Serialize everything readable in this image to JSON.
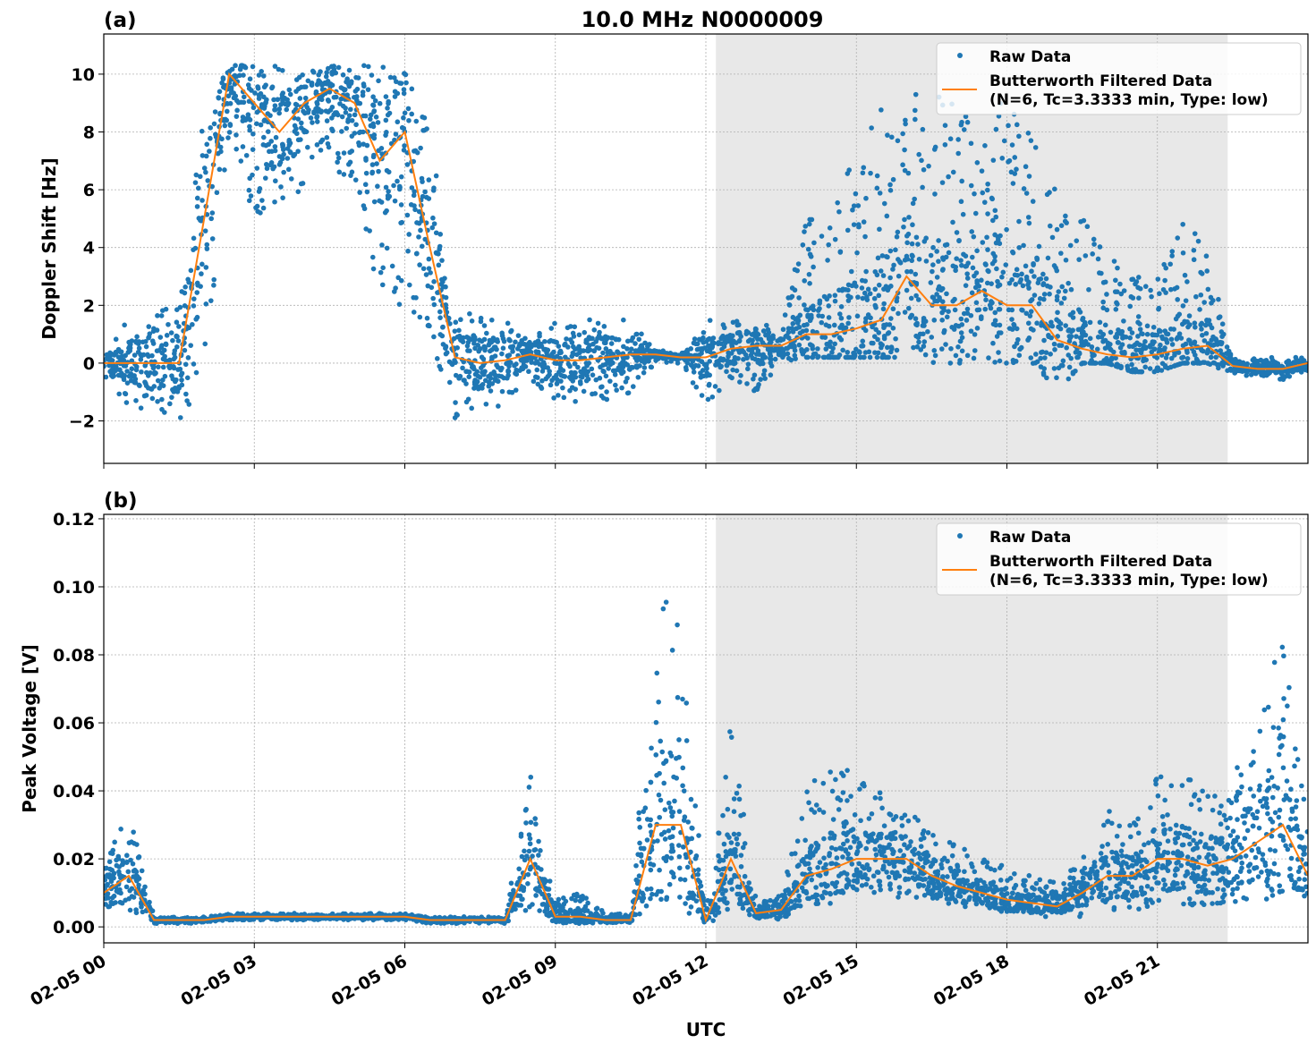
{
  "figure_title": "10.0 MHz N0000009",
  "colors": {
    "raw": "#1f77b4",
    "filtered": "#ff7f0e",
    "shade": "#e8e8e8",
    "grid": "#b0b0b0"
  },
  "legend": {
    "raw": "Raw Data",
    "filtered_line1": "Butterworth Filtered Data",
    "filtered_line2": "(N=6, Tc=3.3333 min, Type: low)",
    "placement": "upper-right"
  },
  "xlabel": "UTC",
  "x_ticks": [
    "02-05 00",
    "02-05 03",
    "02-05 06",
    "02-05 09",
    "02-05 12",
    "02-05 15",
    "02-05 18",
    "02-05 21"
  ],
  "chart_data": [
    {
      "type": "scatter",
      "panel_label": "(a)",
      "ylabel": "Doppler Shift [Hz]",
      "xlim": [
        "02-05 00:00",
        "02-06 00:00"
      ],
      "ylim": [
        -3.47,
        11.39
      ],
      "y_ticks": [
        -2,
        0,
        2,
        4,
        6,
        8,
        10
      ],
      "y_tick_labels": [
        "−2",
        "0",
        "2",
        "4",
        "6",
        "8",
        "10"
      ],
      "grid": true,
      "shaded_span": [
        "02-05 12:12",
        "02-05 22:24"
      ],
      "x": [
        "00:00",
        "00:30",
        "01:00",
        "01:30",
        "02:00",
        "02:30",
        "03:00",
        "03:30",
        "04:00",
        "04:30",
        "05:00",
        "05:30",
        "06:00",
        "06:30",
        "07:00",
        "07:30",
        "08:00",
        "08:30",
        "09:00",
        "09:30",
        "10:00",
        "10:30",
        "11:00",
        "11:30",
        "12:00",
        "12:30",
        "13:00",
        "13:30",
        "14:00",
        "14:30",
        "15:00",
        "15:30",
        "16:00",
        "16:30",
        "17:00",
        "17:30",
        "18:00",
        "18:30",
        "19:00",
        "19:30",
        "20:00",
        "20:30",
        "21:00",
        "21:30",
        "22:00",
        "22:30",
        "23:00",
        "23:30",
        "24:00"
      ],
      "series": [
        {
          "name": "Butterworth Filtered Data",
          "values": [
            0,
            0,
            0,
            0,
            5,
            10,
            9,
            8,
            9,
            9.5,
            9,
            7,
            8,
            4,
            0.2,
            0,
            0.1,
            0.3,
            0.1,
            0.1,
            0.2,
            0.3,
            0.3,
            0.2,
            0.2,
            0.5,
            0.6,
            0.6,
            1,
            1,
            1.2,
            1.5,
            3,
            2,
            2,
            2.5,
            2,
            2,
            0.8,
            0.5,
            0.3,
            0.2,
            0.3,
            0.5,
            0.6,
            -0.1,
            -0.2,
            -0.2,
            0
          ]
        },
        {
          "name": "Raw Data",
          "min": [
            -0.5,
            -1.5,
            -2,
            -2,
            -1,
            8,
            5,
            5,
            6,
            7,
            6,
            2,
            2,
            1,
            -2,
            -2,
            -1.5,
            -0.5,
            -1.5,
            -1.5,
            -1.5,
            -1,
            0,
            0,
            -1.5,
            -0.5,
            -1,
            0,
            0.2,
            0.2,
            0.2,
            0.2,
            0.2,
            0,
            0,
            0,
            0,
            0,
            -1,
            0,
            0,
            -0.3,
            -0.3,
            0,
            0,
            -0.4,
            -0.5,
            -0.6,
            -0.3
          ],
          "max": [
            0.5,
            1.5,
            2,
            2,
            10,
            10.3,
            10.3,
            10.3,
            10.3,
            10.3,
            10.3,
            10.3,
            10.5,
            8,
            2,
            1.7,
            1.5,
            1,
            1.5,
            1.5,
            1.5,
            1.5,
            0.5,
            0.3,
            1.5,
            1.5,
            1.5,
            1.2,
            5,
            6,
            7,
            9,
            9.8,
            9.5,
            9,
            9,
            9,
            8,
            6,
            5,
            4,
            3,
            3,
            5,
            4,
            0.2,
            0.2,
            0.2,
            0.3
          ]
        }
      ]
    },
    {
      "type": "scatter",
      "panel_label": "(b)",
      "ylabel": "Peak Voltage [V]",
      "xlim": [
        "02-05 00:00",
        "02-06 00:00"
      ],
      "ylim": [
        -0.0047,
        0.1213
      ],
      "y_ticks": [
        0,
        0.02,
        0.04,
        0.06,
        0.08,
        0.1,
        0.12
      ],
      "y_tick_labels": [
        "0.00",
        "0.02",
        "0.04",
        "0.06",
        "0.08",
        "0.10",
        "0.12"
      ],
      "grid": true,
      "shaded_span": [
        "02-05 12:12",
        "02-05 22:24"
      ],
      "x": [
        "00:00",
        "00:30",
        "01:00",
        "01:30",
        "02:00",
        "02:30",
        "03:00",
        "03:30",
        "04:00",
        "04:30",
        "05:00",
        "05:30",
        "06:00",
        "06:30",
        "07:00",
        "07:30",
        "08:00",
        "08:30",
        "09:00",
        "09:30",
        "10:00",
        "10:30",
        "11:00",
        "11:30",
        "12:00",
        "12:30",
        "13:00",
        "13:30",
        "14:00",
        "14:30",
        "15:00",
        "15:30",
        "16:00",
        "16:30",
        "17:00",
        "17:30",
        "18:00",
        "18:30",
        "19:00",
        "19:30",
        "20:00",
        "20:30",
        "21:00",
        "21:30",
        "22:00",
        "22:30",
        "23:00",
        "23:30",
        "24:00"
      ],
      "series": [
        {
          "name": "Butterworth Filtered Data",
          "values": [
            0.01,
            0.015,
            0.002,
            0.002,
            0.002,
            0.003,
            0.003,
            0.003,
            0.003,
            0.003,
            0.003,
            0.003,
            0.003,
            0.002,
            0.002,
            0.002,
            0.002,
            0.02,
            0.003,
            0.003,
            0.002,
            0.002,
            0.03,
            0.03,
            0.002,
            0.02,
            0.004,
            0.005,
            0.015,
            0.017,
            0.02,
            0.02,
            0.02,
            0.015,
            0.012,
            0.01,
            0.008,
            0.007,
            0.006,
            0.01,
            0.015,
            0.015,
            0.02,
            0.02,
            0.018,
            0.02,
            0.025,
            0.03,
            0.015
          ]
        },
        {
          "name": "Raw Data",
          "min": [
            0.002,
            0.005,
            0.001,
            0.001,
            0.001,
            0.002,
            0.002,
            0.002,
            0.002,
            0.002,
            0.002,
            0.002,
            0.002,
            0.001,
            0.001,
            0.001,
            0.001,
            0.005,
            0.001,
            0.001,
            0.001,
            0.001,
            0.005,
            0.005,
            0.001,
            0.003,
            0.002,
            0.002,
            0.005,
            0.007,
            0.008,
            0.008,
            0.008,
            0.007,
            0.006,
            0.005,
            0.004,
            0.003,
            0.003,
            0.003,
            0.005,
            0.005,
            0.006,
            0.006,
            0.006,
            0.007,
            0.008,
            0.008,
            0.005
          ],
          "max": [
            0.02,
            0.035,
            0.003,
            0.003,
            0.003,
            0.004,
            0.004,
            0.004,
            0.004,
            0.004,
            0.004,
            0.004,
            0.004,
            0.003,
            0.003,
            0.003,
            0.003,
            0.045,
            0.008,
            0.01,
            0.004,
            0.004,
            0.1,
            0.09,
            0.004,
            0.06,
            0.008,
            0.01,
            0.04,
            0.05,
            0.045,
            0.04,
            0.035,
            0.028,
            0.025,
            0.02,
            0.018,
            0.015,
            0.013,
            0.02,
            0.035,
            0.03,
            0.045,
            0.045,
            0.04,
            0.045,
            0.06,
            0.09,
            0.03
          ]
        }
      ]
    }
  ]
}
